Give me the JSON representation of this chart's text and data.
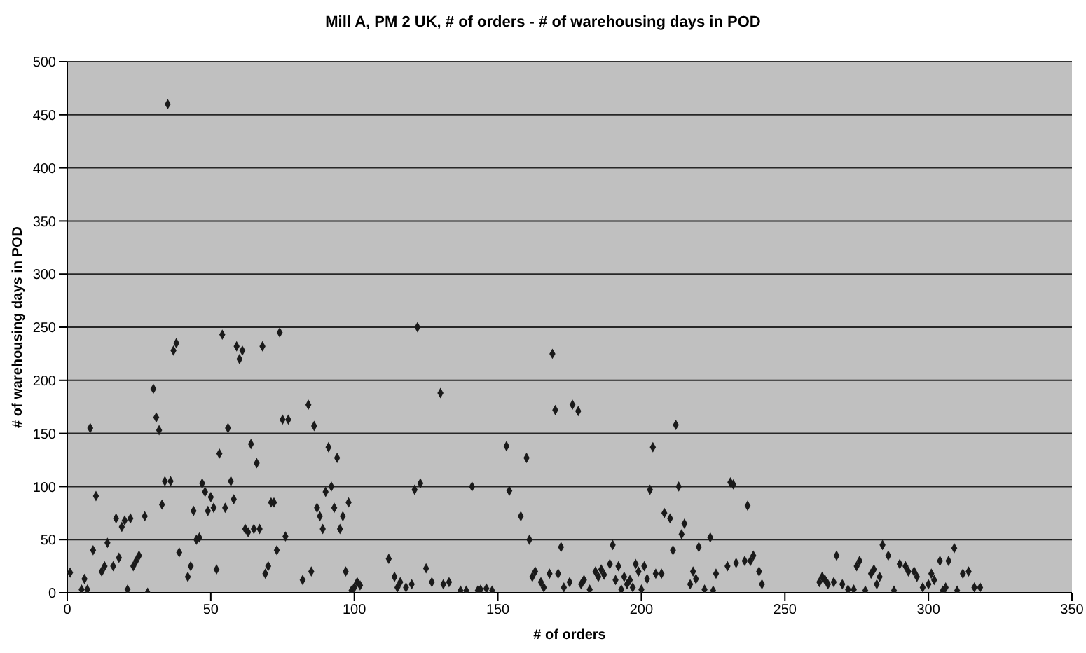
{
  "chart_data": {
    "type": "scatter",
    "title": "Mill A, PM 2 UK, # of orders - # of warehousing days in POD",
    "xlabel": "# of orders",
    "ylabel": "# of warehousing days in POD",
    "xlim": [
      0,
      350
    ],
    "xticks": [
      0,
      50,
      100,
      150,
      200,
      250,
      300,
      350
    ],
    "ylim": [
      0,
      500
    ],
    "yticks": [
      0,
      50,
      100,
      150,
      200,
      250,
      300,
      350,
      400,
      450,
      500
    ],
    "grid": "y",
    "legend": false,
    "marker": "diamond",
    "series": [
      {
        "color": "#1a1a1a",
        "x": [
          1,
          5,
          6,
          7,
          8,
          9,
          10,
          12,
          13,
          14,
          16,
          17,
          18,
          19,
          20,
          21,
          22,
          23,
          24,
          25,
          27,
          28,
          30,
          31,
          32,
          33,
          34,
          35,
          36,
          37,
          38,
          39,
          42,
          43,
          44,
          45,
          46,
          47,
          48,
          49,
          50,
          51,
          52,
          53,
          54,
          55,
          56,
          57,
          58,
          59,
          60,
          61,
          62,
          63,
          64,
          65,
          66,
          67,
          68,
          69,
          70,
          71,
          72,
          73,
          74,
          75,
          76,
          77,
          82,
          84,
          85,
          86,
          87,
          88,
          89,
          90,
          91,
          92,
          93,
          94,
          95,
          96,
          97,
          98,
          99,
          100,
          101,
          102,
          112,
          114,
          115,
          116,
          118,
          120,
          121,
          122,
          123,
          125,
          127,
          130,
          131,
          133,
          137,
          139,
          141,
          143,
          144,
          146,
          148,
          153,
          154,
          158,
          160,
          161,
          162,
          163,
          165,
          166,
          168,
          169,
          170,
          171,
          172,
          173,
          175,
          176,
          178,
          179,
          180,
          182,
          184,
          185,
          186,
          187,
          189,
          190,
          191,
          192,
          193,
          194,
          195,
          196,
          197,
          198,
          199,
          200,
          201,
          202,
          203,
          204,
          205,
          207,
          208,
          210,
          211,
          212,
          213,
          214,
          215,
          217,
          218,
          219,
          220,
          222,
          224,
          225,
          226,
          230,
          231,
          232,
          233,
          236,
          237,
          238,
          239,
          241,
          242,
          262,
          263,
          264,
          265,
          267,
          268,
          270,
          272,
          274,
          275,
          276,
          278,
          280,
          281,
          282,
          283,
          284,
          286,
          288,
          290,
          292,
          293,
          295,
          296,
          298,
          300,
          301,
          302,
          304,
          305,
          306,
          307,
          309,
          310,
          312,
          314,
          316,
          318
        ],
        "values": [
          19,
          3,
          13,
          3,
          155,
          40,
          91,
          20,
          25,
          47,
          25,
          70,
          33,
          62,
          68,
          3,
          70,
          25,
          30,
          35,
          72,
          0,
          192,
          165,
          153,
          83,
          105,
          460,
          105,
          228,
          235,
          38,
          15,
          25,
          77,
          50,
          52,
          103,
          95,
          77,
          90,
          80,
          22,
          131,
          243,
          80,
          155,
          105,
          88,
          232,
          220,
          228,
          60,
          57,
          140,
          60,
          122,
          60,
          232,
          18,
          25,
          85,
          85,
          40,
          245,
          163,
          53,
          163,
          12,
          177,
          20,
          157,
          80,
          72,
          60,
          95,
          137,
          100,
          80,
          127,
          60,
          72,
          20,
          85,
          2,
          5,
          10,
          7,
          32,
          15,
          5,
          10,
          5,
          8,
          97,
          250,
          103,
          23,
          10,
          188,
          8,
          10,
          2,
          2,
          100,
          2,
          3,
          4,
          2,
          138,
          96,
          72,
          127,
          50,
          15,
          20,
          10,
          5,
          18,
          225,
          172,
          18,
          43,
          5,
          10,
          177,
          171,
          8,
          12,
          3,
          20,
          15,
          22,
          17,
          27,
          45,
          12,
          25,
          3,
          15,
          8,
          12,
          5,
          27,
          20,
          3,
          25,
          13,
          97,
          137,
          18,
          18,
          75,
          70,
          40,
          158,
          100,
          55,
          65,
          8,
          20,
          13,
          43,
          3,
          52,
          2,
          18,
          25,
          104,
          102,
          28,
          30,
          82,
          30,
          35,
          20,
          8,
          10,
          15,
          12,
          8,
          10,
          35,
          8,
          3,
          3,
          25,
          30,
          2,
          18,
          22,
          8,
          15,
          45,
          35,
          2,
          27,
          25,
          20,
          20,
          15,
          5,
          8,
          18,
          12,
          30,
          2,
          5,
          30,
          42,
          2,
          18,
          20,
          5,
          5
        ]
      }
    ]
  }
}
